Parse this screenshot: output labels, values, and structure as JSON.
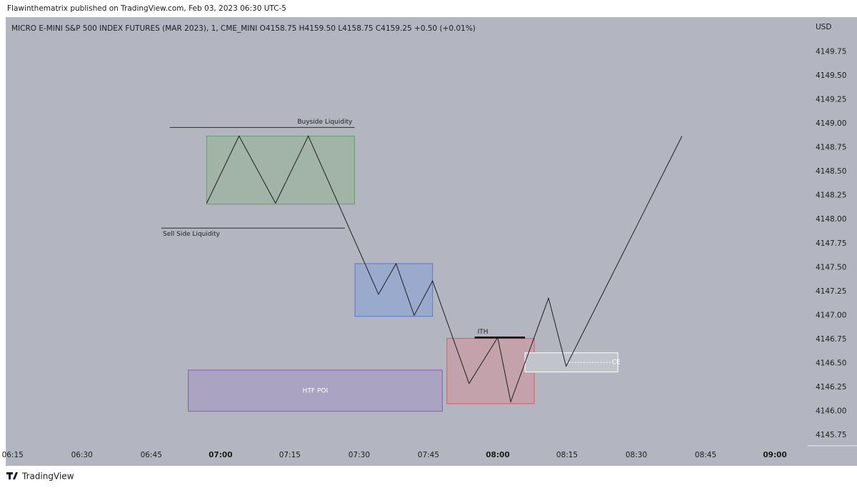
{
  "header": {
    "publisher": "Flawinthematrix published on TradingView.com, Feb 03, 2023 06:30 UTC-5"
  },
  "footer": {
    "brand": "TradingView"
  },
  "chart_data": {
    "type": "line",
    "title": "MICRO E-MINI S&P 500 INDEX FUTURES (MAR 2023), 1, CME_MINI  O4158.75  H4159.50  L4158.75  C4159.25  +0.50 (+0.01%)",
    "y_axis_label": "USD",
    "x": [
      417,
      424,
      431.9,
      439,
      454.2,
      458,
      461.9,
      465.9,
      473.8,
      480,
      482.8,
      491,
      494.8,
      519.9
    ],
    "series": [
      {
        "color": "#1e1e1e",
        "values": [
          4148.17,
          4148.87,
          4148.17,
          4148.87,
          4147.22,
          4147.54,
          4147.0,
          4147.36,
          4146.29,
          4146.77,
          4146.1,
          4147.18,
          4146.47,
          4148.87
        ]
      }
    ],
    "xlim": [
      373.5,
      547.1
    ],
    "ylim": [
      4145.64,
      4150.08
    ],
    "xticks": [
      {
        "value": 375,
        "label": "06:15"
      },
      {
        "value": 390,
        "label": "06:30"
      },
      {
        "value": 405,
        "label": "06:45"
      },
      {
        "value": 420,
        "label": "07:00"
      },
      {
        "value": 435,
        "label": "07:15"
      },
      {
        "value": 450,
        "label": "07:30"
      },
      {
        "value": 465,
        "label": "07:45"
      },
      {
        "value": 480,
        "label": "08:00"
      },
      {
        "value": 495,
        "label": "08:15"
      },
      {
        "value": 510,
        "label": "08:30"
      },
      {
        "value": 525,
        "label": "08:45"
      },
      {
        "value": 540,
        "label": "09:00"
      }
    ],
    "yticks": [
      4149.75,
      {
        "value": 4149.5,
        "label": "4149.50"
      },
      4149.25,
      {
        "value": 4149,
        "label": "4149.00"
      },
      4148.75,
      {
        "value": 4148.5,
        "label": "4148.50"
      },
      4148.25,
      {
        "value": 4148,
        "label": "4148.00"
      },
      4147.75,
      {
        "value": 4147.5,
        "label": "4147.50"
      },
      4147.25,
      {
        "value": 4147,
        "label": "4147.00"
      },
      4146.75,
      {
        "value": 4146.5,
        "label": "4146.50"
      },
      4146.25,
      {
        "value": 4146,
        "label": "4146.00"
      },
      4145.75
    ],
    "drawings": [
      {
        "kind": "box",
        "x": [
          417,
          449
        ],
        "y": [
          4148.16,
          4148.87
        ],
        "fill": "#a2b3a8",
        "stroke": "#5fa264"
      },
      {
        "kind": "box",
        "x": [
          449.1,
          465.9
        ],
        "y": [
          4146.99,
          4147.54
        ],
        "fill": "#9aaacd",
        "stroke": "#5878cf"
      },
      {
        "kind": "box",
        "x": [
          469,
          487.9
        ],
        "y": [
          4146.08,
          4146.76
        ],
        "fill": "#c3a2ab",
        "stroke": "#e05a5a"
      },
      {
        "kind": "box",
        "x": [
          413,
          468
        ],
        "y": [
          4146.0,
          4146.43
        ],
        "fill": "#aaa3c1",
        "stroke": "#a04fc8",
        "label": "HTF POI",
        "label_anchor": "center",
        "label_color": "#ffffff"
      },
      {
        "kind": "box",
        "x": [
          485.9,
          506
        ],
        "y": [
          4146.41,
          4146.61
        ],
        "fill": "#c2c4cc",
        "stroke": "#ffffff"
      },
      {
        "kind": "line",
        "x": [
          409,
          449
        ],
        "y": [
          4148.96,
          4148.96
        ],
        "stroke": "#2a2a2a",
        "width": 1,
        "label": "Buyside Liquidity",
        "label_anchor": "above-end",
        "label_color": "#222222"
      },
      {
        "kind": "line",
        "x": [
          407.2,
          446.9
        ],
        "y": [
          4147.91,
          4147.91
        ],
        "stroke": "#2a2a2a",
        "width": 1,
        "label": "Sell Side Liquidity",
        "label_anchor": "below-start",
        "label_color": "#222222"
      },
      {
        "kind": "line",
        "x": [
          475,
          485.9
        ],
        "y": [
          4146.77,
          4146.77
        ],
        "stroke": "#000000",
        "width": 2.5,
        "label": "ITH",
        "label_anchor": "above-start",
        "label_color": "#222222"
      },
      {
        "kind": "dashed",
        "x": [
          494.8,
          504.4
        ],
        "y": [
          4146.51,
          4146.51
        ],
        "stroke": "#ffffff",
        "width": 1,
        "label": "CE",
        "label_anchor": "end",
        "label_color": "#ffffff"
      }
    ]
  }
}
